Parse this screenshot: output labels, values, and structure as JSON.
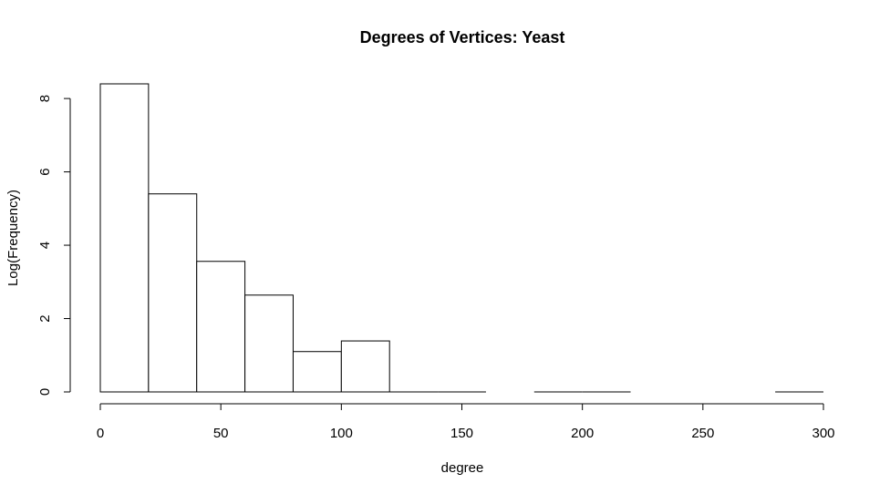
{
  "chart_data": {
    "type": "bar",
    "title": "Degrees of Vertices: Yeast",
    "xlabel": "degree",
    "ylabel": "Log(Frequency)",
    "xlim": [
      0,
      300
    ],
    "ylim": [
      0,
      8.4
    ],
    "xticks": [
      0,
      50,
      100,
      150,
      200,
      250,
      300
    ],
    "yticks": [
      0,
      2,
      4,
      6,
      8
    ],
    "grid": false,
    "bins": [
      {
        "x0": 0,
        "x1": 20,
        "value": 8.4
      },
      {
        "x0": 20,
        "x1": 40,
        "value": 5.4
      },
      {
        "x0": 40,
        "x1": 60,
        "value": 3.56
      },
      {
        "x0": 60,
        "x1": 80,
        "value": 2.64
      },
      {
        "x0": 80,
        "x1": 100,
        "value": 1.1
      },
      {
        "x0": 100,
        "x1": 120,
        "value": 1.39
      },
      {
        "x0": 120,
        "x1": 140,
        "value": 0
      },
      {
        "x0": 140,
        "x1": 160,
        "value": 0
      },
      {
        "x0": 180,
        "x1": 200,
        "value": 0
      },
      {
        "x0": 200,
        "x1": 220,
        "value": 0
      },
      {
        "x0": 280,
        "x1": 300,
        "value": 0
      }
    ]
  }
}
